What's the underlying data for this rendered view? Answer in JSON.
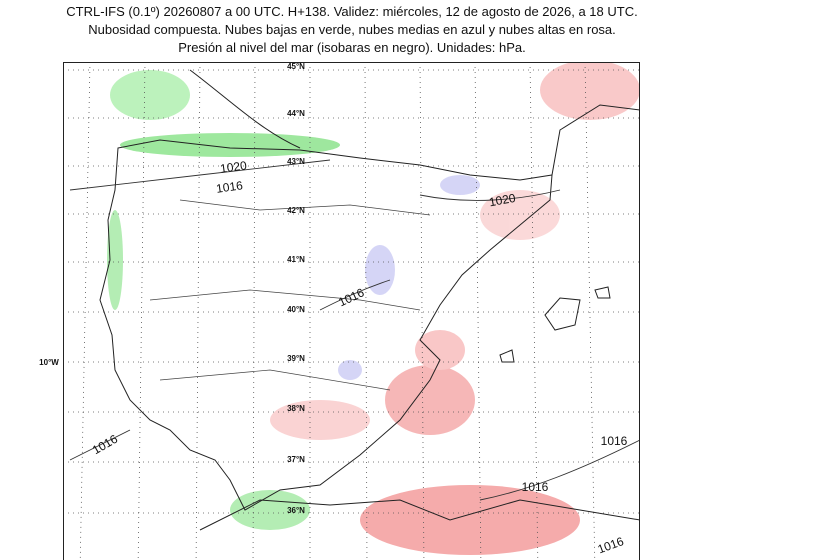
{
  "header": {
    "lines": [
      "CTRL-IFS (0.1º) 20260807 a 00 UTC. H+138. Validez: miércoles, 12 de agosto de 2026, a 18 UTC.",
      "Nubosidad compuesta. Nubes bajas en verde, nubes medias en azul y nubes altas en rosa.",
      "Presión al nivel del mar (isobaras en negro). Unidades: hPa."
    ]
  },
  "map": {
    "lat_labels": [
      "45°N",
      "44°N",
      "43°N",
      "42°N",
      "41°N",
      "40°N",
      "39°N",
      "38°N",
      "37°N",
      "36°N"
    ],
    "lon_labels": [
      "10°W"
    ],
    "isobar_labels": [
      "1020",
      "1016",
      "1020",
      "1016",
      "1016",
      "1016",
      "1016",
      "1016"
    ]
  }
}
